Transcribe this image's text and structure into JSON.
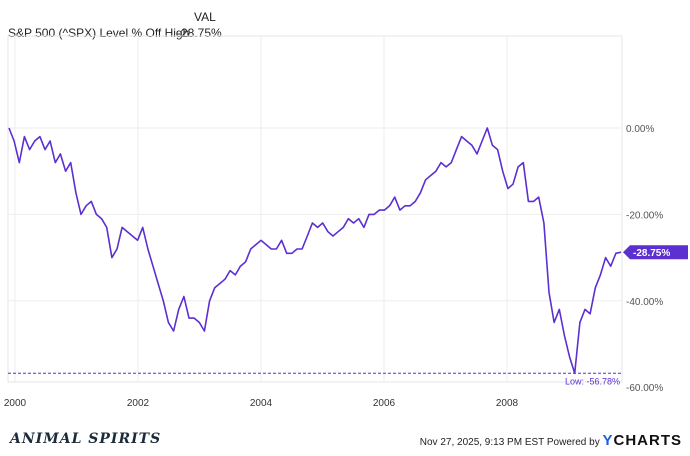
{
  "header": {
    "col_label": "VAL",
    "series_label": "S&P 500 (^SPX) Level % Off High",
    "value": "-28.75%"
  },
  "chart_data": {
    "type": "line",
    "series": [
      {
        "name": "S&P 500 (^SPX) Level % Off High",
        "color": "#5b2fd0",
        "start": "2000-01",
        "frequency": "monthly",
        "values": [
          0,
          -3,
          -8,
          -2,
          -5,
          -3,
          -2,
          -5,
          -3,
          -8,
          -6,
          -10,
          -8,
          -15,
          -20,
          -18,
          -17,
          -20,
          -21,
          -23,
          -30,
          -28,
          -23,
          -24,
          -25,
          -26,
          -23,
          -28,
          -32,
          -36,
          -40,
          -45,
          -47,
          -42,
          -39,
          -44,
          -44,
          -45,
          -47,
          -40,
          -37,
          -36,
          -35,
          -33,
          -34,
          -32,
          -31,
          -28,
          -27,
          -26,
          -27,
          -28,
          -28,
          -26,
          -29,
          -29,
          -28,
          -28,
          -25,
          -22,
          -23,
          -22,
          -24,
          -25,
          -24,
          -23,
          -21,
          -22,
          -21,
          -23,
          -20,
          -20,
          -19,
          -19,
          -18,
          -16,
          -19,
          -18,
          -18,
          -17,
          -15,
          -12,
          -11,
          -10,
          -8,
          -9,
          -8,
          -5,
          -2,
          -3,
          -4,
          -6,
          -3,
          0,
          -4,
          -5,
          -10,
          -14,
          -13,
          -9,
          -8,
          -17,
          -17,
          -16,
          -22,
          -38,
          -45,
          -42,
          -48,
          -53,
          -56.78,
          -45,
          -42,
          -43,
          -37,
          -34,
          -30,
          -32,
          -29,
          -28.75
        ]
      }
    ],
    "x_ticks": [
      "2000",
      "2002",
      "2004",
      "2006",
      "2008"
    ],
    "y_ticks": [
      "0.00%",
      "-20.00%",
      "-40.00%",
      "-60.00%"
    ],
    "y_tick_values": [
      0,
      -20,
      -40,
      -60
    ],
    "ylim": [
      -60,
      5
    ],
    "xlim": [
      "2000-01",
      "2009-12"
    ],
    "grid": true,
    "last_value_label": "-28.75%",
    "low_label": "Low: -56.78%",
    "low_value": -56.78
  },
  "footer": {
    "logo": "ANIMAL SPIRITS",
    "timestamp": "Nov 27, 2025, 9:13 PM EST",
    "powered_by": "Powered by",
    "brand_y": "Y",
    "brand_rest": "CHARTS"
  }
}
